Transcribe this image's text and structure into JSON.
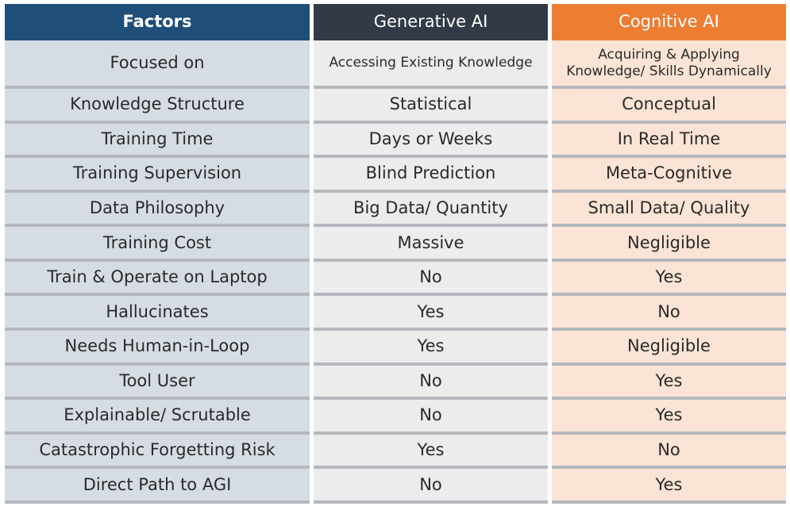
{
  "headers": {
    "factors": "Factors",
    "generative": "Generative AI",
    "cognitive": "Cognitive AI"
  },
  "rows": [
    {
      "factor": "Focused on",
      "generative": "Accessing Existing Knowledge",
      "cognitive": "Acquiring & Applying Knowledge/ Skills Dynamically"
    },
    {
      "factor": "Knowledge Structure",
      "generative": "Statistical",
      "cognitive": "Conceptual"
    },
    {
      "factor": "Training Time",
      "generative": "Days or Weeks",
      "cognitive": "In Real Time"
    },
    {
      "factor": "Training Supervision",
      "generative": "Blind Prediction",
      "cognitive": "Meta-Cognitive"
    },
    {
      "factor": "Data Philosophy",
      "generative": "Big Data/ Quantity",
      "cognitive": "Small Data/ Quality"
    },
    {
      "factor": "Training Cost",
      "generative": "Massive",
      "cognitive": "Negligible"
    },
    {
      "factor": "Train & Operate on Laptop",
      "generative": "No",
      "cognitive": "Yes"
    },
    {
      "factor": "Hallucinates",
      "generative": "Yes",
      "cognitive": "No"
    },
    {
      "factor": "Needs Human-in-Loop",
      "generative": "Yes",
      "cognitive": "Negligible"
    },
    {
      "factor": "Tool User",
      "generative": "No",
      "cognitive": "Yes"
    },
    {
      "factor": "Explainable/ Scrutable",
      "generative": "No",
      "cognitive": "Yes"
    },
    {
      "factor": "Catastrophic Forgetting Risk",
      "generative": "Yes",
      "cognitive": "No"
    },
    {
      "factor": "Direct Path to AGI",
      "generative": "No",
      "cognitive": "Yes"
    }
  ],
  "colors": {
    "factors_header": "#1f4e79",
    "generative_header": "#323a47",
    "cognitive_header": "#ed7d31",
    "factors_cell": "#d6dce4",
    "generative_cell": "#ececec",
    "cognitive_cell": "#fbe4d5"
  }
}
